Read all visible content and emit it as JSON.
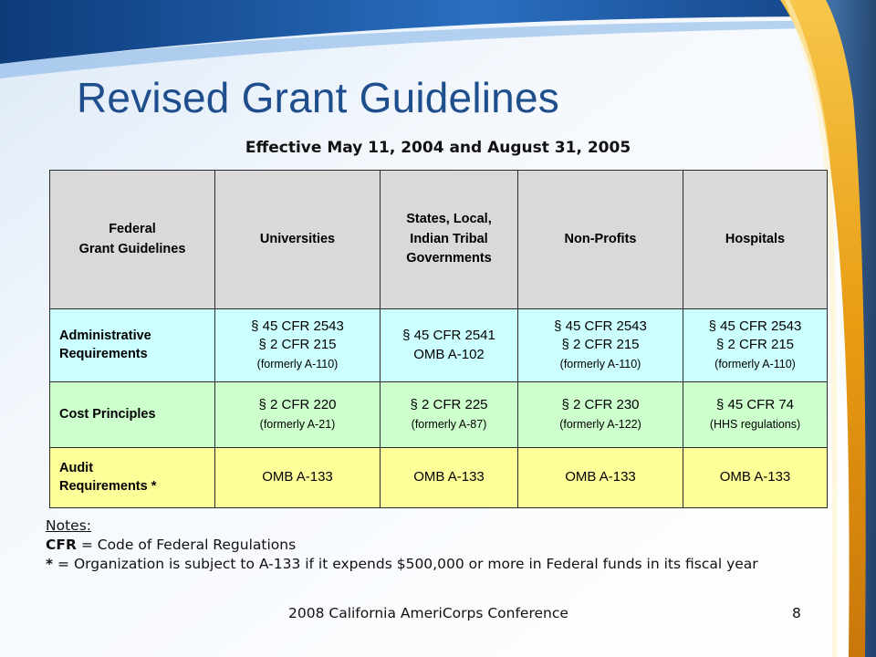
{
  "slide": {
    "title": "Revised Grant Guidelines",
    "subtitle": "Effective May 11, 2004 and August 31, 2005",
    "footer": "2008 California AmeriCorps Conference",
    "page_number": "8"
  },
  "table": {
    "header": {
      "c0_l1": "Federal",
      "c0_l2": "Grant Guidelines",
      "c1": "Universities",
      "c2_l1": "States, Local,",
      "c2_l2": "Indian Tribal",
      "c2_l3": "Governments",
      "c3": "Non-Profits",
      "c4": "Hospitals"
    },
    "admin": {
      "label_l1": "Administrative",
      "label_l2": "Requirements",
      "univ": [
        "§ 45 CFR 2543",
        "§ 2 CFR 215",
        "(formerly A-110)"
      ],
      "states": [
        "§ 45 CFR 2541",
        "OMB A-102"
      ],
      "nonprofits": [
        "§ 45 CFR 2543",
        "§ 2 CFR 215",
        "(formerly A-110)"
      ],
      "hospitals": [
        "§ 45 CFR 2543",
        "§ 2 CFR 215",
        "(formerly A-110)"
      ]
    },
    "cost": {
      "label": "Cost Principles",
      "univ": [
        "§ 2 CFR 220",
        "(formerly A-21)"
      ],
      "states": [
        "§ 2 CFR 225",
        "(formerly A-87)"
      ],
      "nonprofits": [
        "§ 2 CFR 230",
        "(formerly A-122)"
      ],
      "hospitals": [
        "§ 45 CFR 74",
        "(HHS regulations)"
      ]
    },
    "audit": {
      "label_l1": "Audit",
      "label_l2": "Requirements *",
      "univ": "OMB A-133",
      "states": "OMB A-133",
      "nonprofits": "OMB A-133",
      "hospitals": "OMB A-133"
    }
  },
  "notes": {
    "title": "Notes:",
    "cfr_term": "CFR",
    "cfr_def": " = Code of Federal Regulations",
    "star_term": "*",
    "star_def": " = Organization is subject to A-133 if it expends $500,000 or more in Federal funds in its fiscal year"
  },
  "colors": {
    "title": "#1f4e8c",
    "header_bg": "#d9d9d9",
    "admin_bg": "#ccffff",
    "cost_bg": "#ccffcc",
    "audit_bg": "#ffff99",
    "top_band": "#1b4f8f",
    "gold_band": "#e8a51a"
  }
}
